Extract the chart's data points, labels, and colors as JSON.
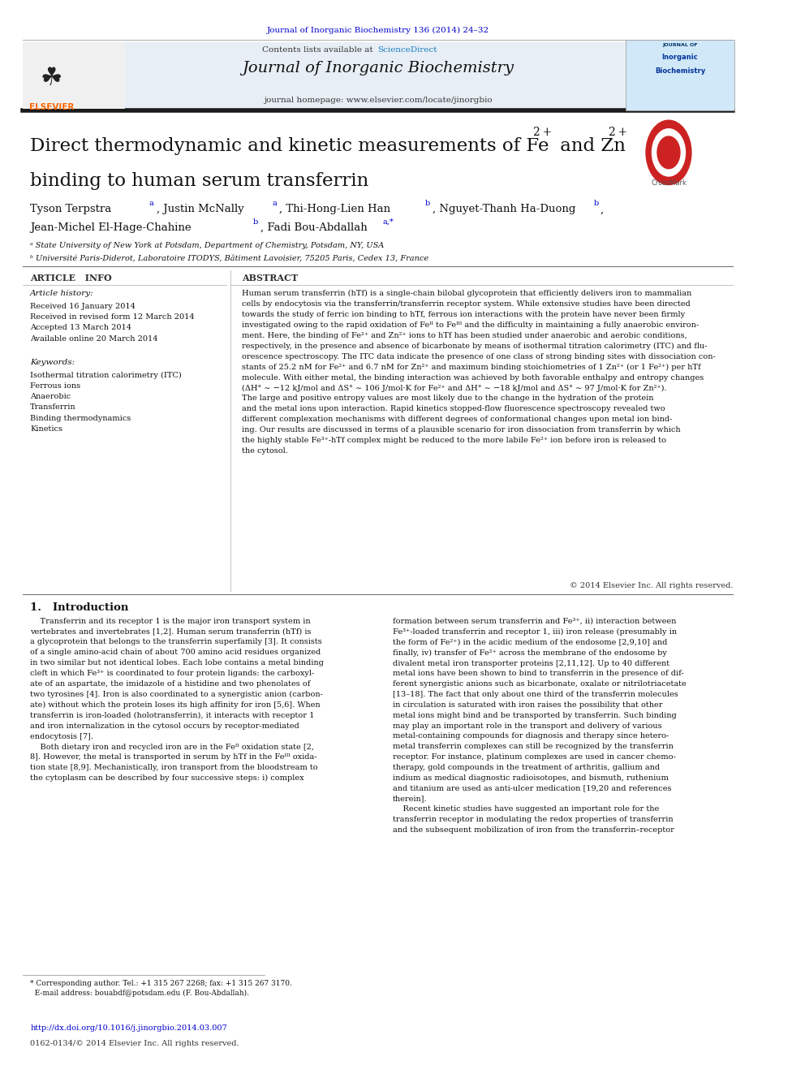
{
  "page_width": 9.92,
  "page_height": 13.23,
  "background_color": "#ffffff",
  "top_journal_ref": "Journal of Inorganic Biochemistry 136 (2014) 24–32",
  "top_journal_ref_color": "#0000cc",
  "header_bg": "#e8eef5",
  "header_journal_name": "Journal of Inorganic Biochemistry",
  "header_homepage": "journal homepage: www.elsevier.com/locate/jinorgbio",
  "header_sciencedirect_pre": "Contents lists available at ",
  "header_sciencedirect_link": "ScienceDirect",
  "sciencedirect_color": "#1a7fbf",
  "elsevier_color": "#ff6600",
  "title_line1": "Direct thermodynamic and kinetic measurements of Fe",
  "title_sup1": "2 +",
  "title_mid": " and Zn",
  "title_sup2": "2 +",
  "title_line2": "binding to human serum transferrin",
  "affil_a": "ᵃ State University of New York at Potsdam, Department of Chemistry, Potsdam, NY, USA",
  "affil_b": "ᵇ Université Paris-Diderot, Laboratoire ITODYS, Bâtiment Lavoisier, 75205 Paris, Cedex 13, France",
  "article_info_title": "ARTICLE   INFO",
  "article_history_title": "Article history:",
  "article_history": "Received 16 January 2014\nReceived in revised form 12 March 2014\nAccepted 13 March 2014\nAvailable online 20 March 2014",
  "keywords_title": "Keywords:",
  "keywords": "Isothermal titration calorimetry (ITC)\nFerrous ions\nAnaerobic\nTransferrin\nBinding thermodynamics\nKinetics",
  "abstract_title": "ABSTRACT",
  "abstract_text": "Human serum transferrin (hTf) is a single-chain bilobal glycoprotein that efficiently delivers iron to mammalian\ncells by endocytosis via the transferrin/transferrin receptor system. While extensive studies have been directed\ntowards the study of ferric ion binding to hTf, ferrous ion interactions with the protein have never been firmly\ninvestigated owing to the rapid oxidation of Feᴵᴵ to Feᴵᴵᴵ and the difficulty in maintaining a fully anaerobic environ-\nment. Here, the binding of Fe²⁺ and Zn²⁺ ions to hTf has been studied under anaerobic and aerobic conditions,\nrespectively, in the presence and absence of bicarbonate by means of isothermal titration calorimetry (ITC) and flu-\norescence spectroscopy. The ITC data indicate the presence of one class of strong binding sites with dissociation con-\nstants of 25.2 nM for Fe²⁺ and 6.7 nM for Zn²⁺ and maximum binding stoichiometries of 1 Zn²⁺ (or 1 Fe²⁺) per hTf\nmolecule. With either metal, the binding interaction was achieved by both favorable enthalpy and entropy changes\n(ΔH° ∼ −12 kJ/mol and ΔS° ∼ 106 J/mol·K for Fe²⁺ and ΔH° ∼ −18 kJ/mol and ΔS° ∼ 97 J/mol·K for Zn²⁺).\nThe large and positive entropy values are most likely due to the change in the hydration of the protein\nand the metal ions upon interaction. Rapid kinetics stopped-flow fluorescence spectroscopy revealed two\ndifferent complexation mechanisms with different degrees of conformational changes upon metal ion bind-\ning. Our results are discussed in terms of a plausible scenario for iron dissociation from transferrin by which\nthe highly stable Fe³⁺-hTf complex might be reduced to the more labile Fe²⁺ ion before iron is released to\nthe cytosol.",
  "copyright": "© 2014 Elsevier Inc. All rights reserved.",
  "intro_title": "1.   Introduction",
  "intro_col1": "    Transferrin and its receptor 1 is the major iron transport system in\nvertebrates and invertebrates [1,2]. Human serum transferrin (hTf) is\na glycoprotein that belongs to the transferrin superfamily [3]. It consists\nof a single amino-acid chain of about 700 amino acid residues organized\nin two similar but not identical lobes. Each lobe contains a metal binding\ncleft in which Fe³⁺ is coordinated to four protein ligands: the carboxyl-\nate of an aspartate, the imidazole of a histidine and two phenolates of\ntwo tyrosines [4]. Iron is also coordinated to a synergistic anion (carbon-\nate) without which the protein loses its high affinity for iron [5,6]. When\ntransferrin is iron-loaded (holotransferrin), it interacts with receptor 1\nand iron internalization in the cytosol occurs by receptor-mediated\nendocytosis [7].\n    Both dietary iron and recycled iron are in the Feᴵᴵ oxidation state [2,\n8]. However, the metal is transported in serum by hTf in the Feᴵᴵᴵ oxida-\ntion state [8,9]. Mechanistically, iron transport from the bloodstream to\nthe cytoplasm can be described by four successive steps: i) complex",
  "intro_col2": "formation between serum transferrin and Fe³⁺, ii) interaction between\nFe³⁺-loaded transferrin and receptor 1, iii) iron release (presumably in\nthe form of Fe²⁺) in the acidic medium of the endosome [2,9,10] and\nfinally, iv) transfer of Fe²⁺ across the membrane of the endosome by\ndivalent metal iron transporter proteins [2,11,12]. Up to 40 different\nmetal ions have been shown to bind to transferrin in the presence of dif-\nferent synergistic anions such as bicarbonate, oxalate or nitrilotriacetate\n[13–18]. The fact that only about one third of the transferrin molecules\nin circulation is saturated with iron raises the possibility that other\nmetal ions might bind and be transported by transferrin. Such binding\nmay play an important role in the transport and delivery of various\nmetal-containing compounds for diagnosis and therapy since hetero-\nmetal transferrin complexes can still be recognized by the transferrin\nreceptor. For instance, platinum complexes are used in cancer chemo-\ntherapy, gold compounds in the treatment of arthritis, gallium and\nindium as medical diagnostic radioisotopes, and bismuth, ruthenium\nand titanium are used as anti-ulcer medication [19,20 and references\ntherein].\n    Recent kinetic studies have suggested an important role for the\ntransferrin receptor in modulating the redox properties of transferrin\nand the subsequent mobilization of iron from the transferrin–receptor",
  "footer_doi": "http://dx.doi.org/10.1016/j.jinorgbio.2014.03.007",
  "footer_issn": "0162-0134/© 2014 Elsevier Inc. All rights reserved.",
  "footer_doi_color": "#0000cc",
  "footnote_text": "* Corresponding author. Tel.: +1 315 267 2268; fax: +1 315 267 3170.\n  E-mail address: bouabdf@potsdam.edu (F. Bou-Abdallah)."
}
